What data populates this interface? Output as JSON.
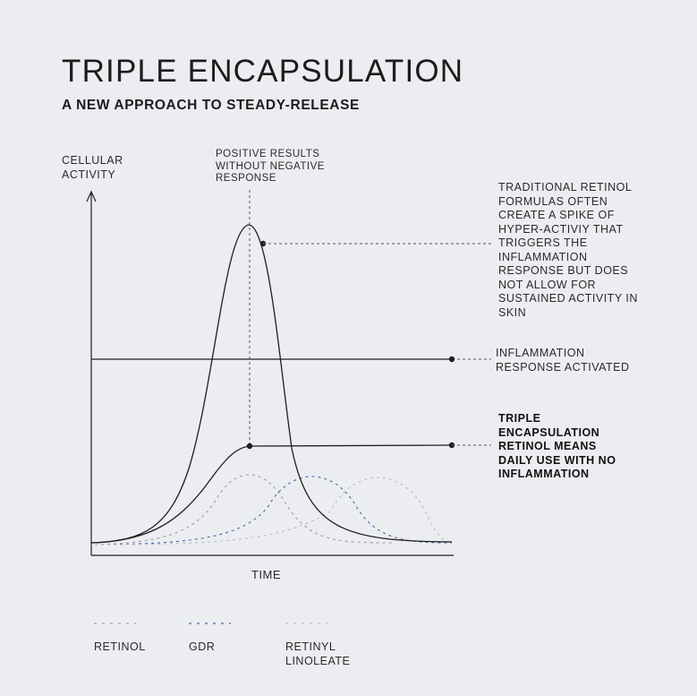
{
  "title": "TRIPLE ENCAPSULATION",
  "subtitle": "A NEW APPROACH TO STEADY-RELEASE",
  "axis": {
    "y_label": "CELLULAR\nACTIVITY",
    "x_label": "TIME"
  },
  "annotations": {
    "peak": "POSITIVE RESULTS\nWITHOUT NEGATIVE\nRESPONSE",
    "traditional": "TRADITIONAL RETINOL\nFORMULAS OFTEN\nCREATE A SPIKE OF\nHYPER-ACTIVIY THAT\nTRIGGERS THE\nINFLAMMATION\nRESPONSE BUT DOES\nNOT ALLOW FOR\nSUSTAINED ACTIVITY IN\nSKIN",
    "inflammation": "INFLAMMATION\nRESPONSE ACTIVATED",
    "triple": "TRIPLE\nENCAPSULATION\nRETINOL MEANS\nDAILY USE WITH NO\nINFLAMMATION"
  },
  "legend": [
    {
      "label": "RETINOL",
      "color": "#9a9ca2"
    },
    {
      "label": "GDR",
      "color": "#4a66a8"
    },
    {
      "label": "RETINYL\nLINOLEATE",
      "color": "#b8bcc4"
    }
  ],
  "colors": {
    "background": "#ecedf1",
    "curve": "#1f1f1f",
    "retinol": "#9a9ca2",
    "gdr": "#4a66a8",
    "retinyl_linoleate": "#b8bcc4"
  }
}
